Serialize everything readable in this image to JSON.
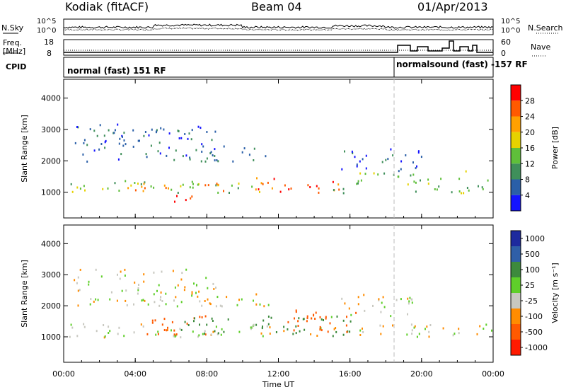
{
  "header": {
    "station": "Kodiak (fitACF)",
    "beam": "Beam 04",
    "date": "01/Apr/2013"
  },
  "top_panels": {
    "nsky_label": "N.Sky",
    "nsearch_label": "N.Search",
    "nsky_ticks": [
      "10^5",
      "10^0"
    ],
    "nsearch_ticks": [
      "10^5",
      "10^0"
    ],
    "freq_label_1": "Freq.",
    "freq_label_2": "[MHz]",
    "freq_ticks": [
      "18",
      "8"
    ],
    "nave_label": "Nave",
    "nave_ticks": [
      "60",
      "0"
    ],
    "cpid_label": "CPID",
    "mode_1": "normal (fast) 151 RF",
    "mode_2": "normalsound (fast) -157 RF"
  },
  "chart_data": [
    {
      "type": "heatmap",
      "panel": "power",
      "ylabel": "Slant Range [km]",
      "xlabel": "",
      "x_ticks": [
        "00:00",
        "04:00",
        "08:00",
        "12:00",
        "16:00",
        "20:00",
        "00:00"
      ],
      "xlim_hours": [
        0,
        24
      ],
      "y_ticks": [
        1000,
        2000,
        3000,
        4000
      ],
      "ylim_km": [
        180,
        4600
      ],
      "colorbar_label": "Power [dB]",
      "colorbar_ticks": [
        "28",
        "24",
        "20",
        "16",
        "12",
        "8",
        "4"
      ],
      "colorbar_colors": [
        "#ff0000",
        "#ff5a00",
        "#ffa000",
        "#e6d200",
        "#5fbf3a",
        "#3f8f5a",
        "#2a5fa8",
        "#1414ff"
      ],
      "colorbar_range": [
        0,
        30
      ],
      "scatter_regions": [
        {
          "t_start": 0.0,
          "t_end": 11.0,
          "r_low": 1000,
          "r_high": 1400,
          "value": 13
        },
        {
          "t_start": 3.5,
          "t_end": 9.0,
          "r_low": 1050,
          "r_high": 1350,
          "value": 21
        },
        {
          "t_start": 6.0,
          "t_end": 7.5,
          "r_low": 700,
          "r_high": 1100,
          "value": 27
        },
        {
          "t_start": 10.5,
          "t_end": 15.5,
          "r_low": 1000,
          "r_high": 1500,
          "value": 24
        },
        {
          "t_start": 15.0,
          "t_end": 16.5,
          "r_low": 1000,
          "r_high": 1500,
          "value": 11
        },
        {
          "t_start": 16.5,
          "t_end": 22.5,
          "r_low": 1400,
          "r_high": 1700,
          "value": 13
        },
        {
          "t_start": 19.0,
          "t_end": 24.0,
          "r_low": 1000,
          "r_high": 1450,
          "value": 12
        },
        {
          "t_start": 0.5,
          "t_end": 8.5,
          "r_low": 2000,
          "r_high": 3200,
          "value": 6
        },
        {
          "t_start": 7.0,
          "t_end": 11.5,
          "r_low": 2000,
          "r_high": 2500,
          "value": 7
        },
        {
          "t_start": 15.5,
          "t_end": 20.0,
          "r_low": 1700,
          "r_high": 2400,
          "value": 5
        }
      ]
    },
    {
      "type": "heatmap",
      "panel": "velocity",
      "ylabel": "Slant Range [km]",
      "xlabel": "Time UT",
      "x_ticks": [
        "00:00",
        "04:00",
        "08:00",
        "12:00",
        "16:00",
        "20:00",
        "00:00"
      ],
      "xlim_hours": [
        0,
        24
      ],
      "y_ticks": [
        1000,
        2000,
        3000,
        4000
      ],
      "ylim_km": [
        180,
        4600
      ],
      "colorbar_label": "Velocity [m s⁻¹]",
      "colorbar_ticks": [
        "1000",
        "500",
        "100",
        "25",
        "-25",
        "-100",
        "-500",
        "-1000"
      ],
      "colorbar_colors": [
        "#1e2a9e",
        "#2f5fa8",
        "#3d8a3d",
        "#5fcf2a",
        "#c8c8c0",
        "#ff8c00",
        "#ff5a00",
        "#ff1a00"
      ],
      "scatter_regions": [
        {
          "t_start": 0.0,
          "t_end": 24.0,
          "r_low": 1000,
          "r_high": 1450,
          "value": 0
        },
        {
          "t_start": 4.5,
          "t_end": 8.5,
          "r_low": 1100,
          "r_high": 1700,
          "value": -300
        },
        {
          "t_start": 6.5,
          "t_end": 9.5,
          "r_low": 1100,
          "r_high": 1650,
          "value": 300
        },
        {
          "t_start": 10.5,
          "t_end": 16.0,
          "r_low": 1050,
          "r_high": 1700,
          "value": 150
        },
        {
          "t_start": 12.5,
          "t_end": 16.5,
          "r_low": 1100,
          "r_high": 1900,
          "value": -200
        },
        {
          "t_start": 0.5,
          "t_end": 8.5,
          "r_low": 2000,
          "r_high": 3200,
          "value": 0
        },
        {
          "t_start": 7.0,
          "t_end": 11.5,
          "r_low": 2000,
          "r_high": 2500,
          "value": 0
        },
        {
          "t_start": 15.5,
          "t_end": 20.0,
          "r_low": 1700,
          "r_high": 2400,
          "value": 0
        }
      ]
    }
  ]
}
